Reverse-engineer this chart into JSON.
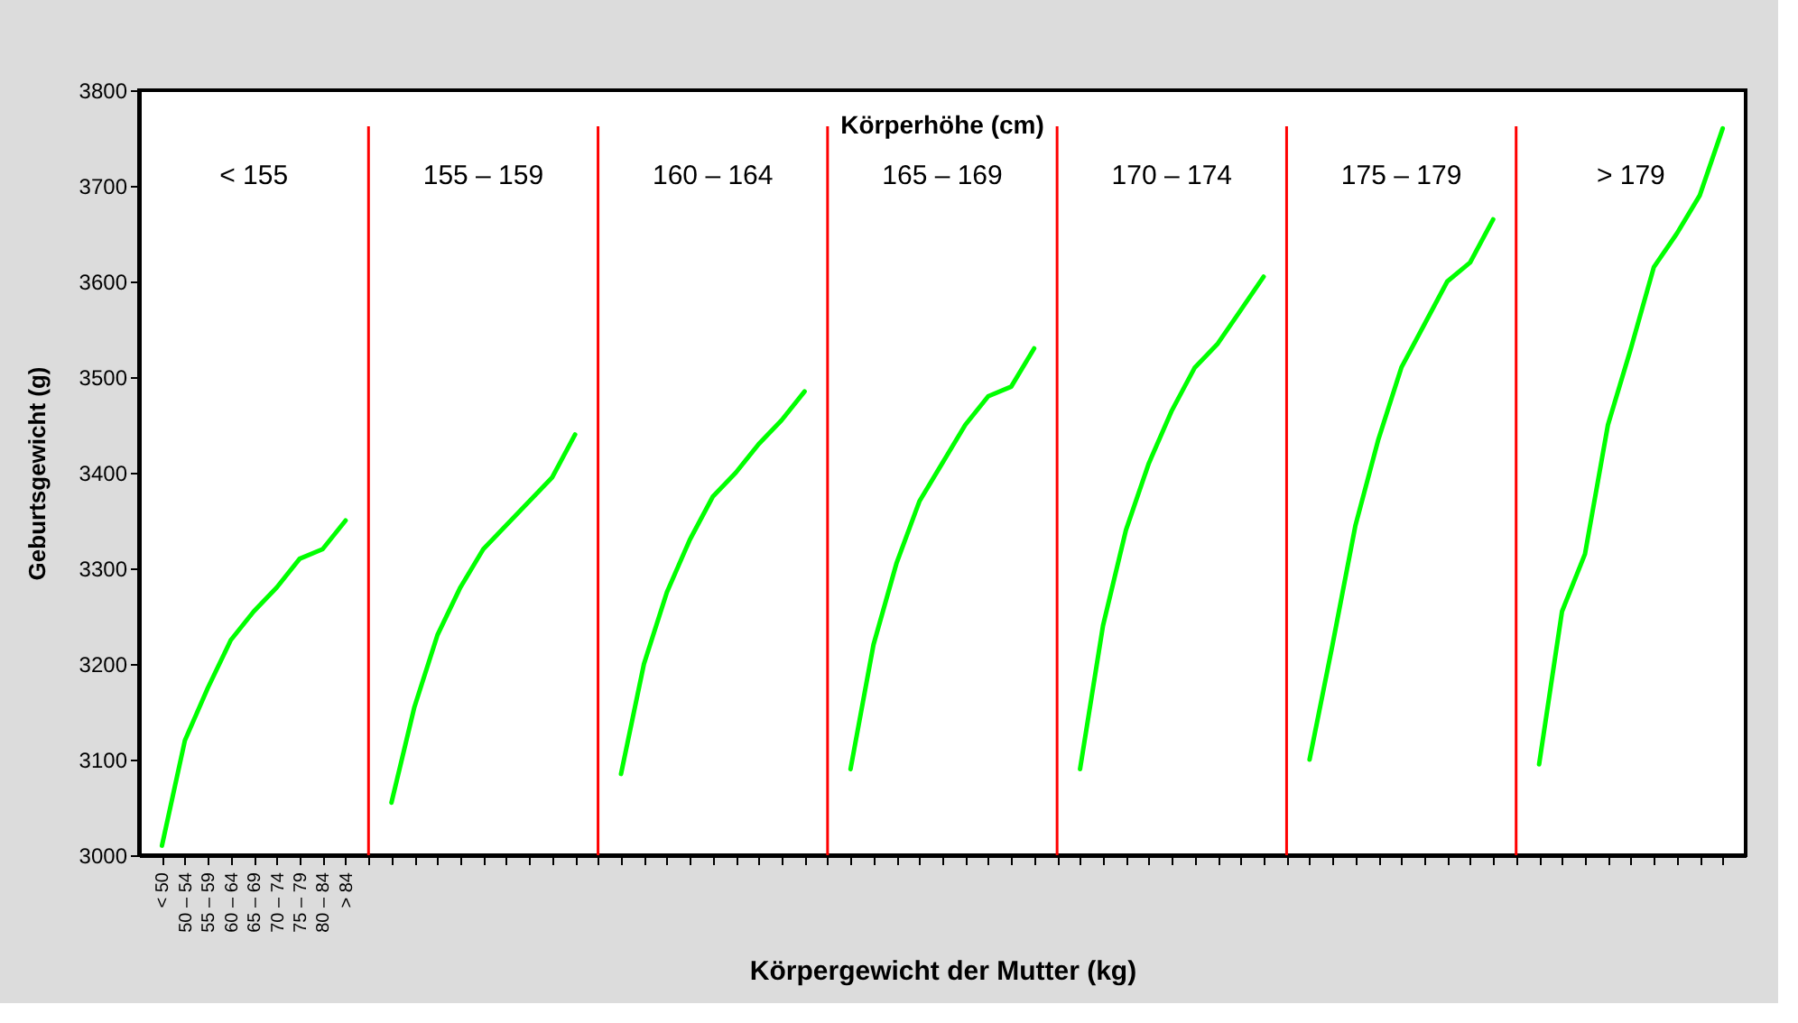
{
  "chart_data": {
    "type": "line",
    "xlabel": "Körpergewicht der Mutter (kg)",
    "ylabel": "Geburtsgewicht (g)",
    "legend_title": "Körperhöhe (cm)",
    "categories": [
      "< 50",
      "50 – 54",
      "55 – 59",
      "60 – 64",
      "65 – 69",
      "70 – 74",
      "75 – 79",
      "80 – 84",
      "> 84",
      null,
      null,
      null,
      null,
      null,
      null,
      null,
      null,
      null,
      null,
      null,
      null,
      null,
      null,
      null,
      null,
      null,
      null,
      null,
      null,
      null,
      null,
      null,
      null,
      null,
      null,
      null,
      null,
      null,
      null,
      null,
      null,
      null,
      null,
      null,
      null,
      null,
      null,
      null,
      null,
      null,
      null,
      null,
      null,
      null,
      null,
      null,
      null,
      null,
      null,
      null,
      null,
      null,
      null,
      null,
      null,
      null,
      null,
      null,
      null
    ],
    "ylim": [
      3000,
      3800
    ],
    "yticks": [
      3000,
      3100,
      3200,
      3300,
      3400,
      3500,
      3600,
      3700,
      3800
    ],
    "marker": "none",
    "line_style": "solid",
    "grid": "x",
    "annotations": [
      "< 155",
      "155 – 159",
      "160 – 164",
      "165 – 169",
      "170 – 174",
      "175 – 179",
      "> 179"
    ],
    "series": [
      {
        "color": "#00ff00",
        "values": [
          3010,
          3120,
          3175,
          3225,
          3255,
          3280,
          3310,
          3320,
          3350,
          null,
          null,
          null,
          null,
          null,
          null,
          null,
          null,
          null,
          null,
          null,
          null,
          null,
          null,
          null,
          null,
          null,
          null,
          null,
          null,
          null,
          null,
          null,
          null,
          null,
          null,
          null,
          null,
          null,
          null,
          null,
          null,
          null,
          null,
          null,
          null,
          null,
          null,
          null,
          null,
          null,
          null,
          null,
          null,
          null,
          null,
          null,
          null,
          null,
          null,
          null,
          null,
          null,
          null,
          null,
          null,
          null,
          null,
          null,
          null
        ]
      },
      {
        "color": "#00ff00",
        "values": [
          null,
          null,
          null,
          null,
          null,
          null,
          null,
          null,
          null,
          null,
          3055,
          3155,
          3230,
          3280,
          3320,
          3345,
          3370,
          3395,
          3440,
          null,
          null,
          null,
          null,
          null,
          null,
          null,
          null,
          null,
          null,
          null,
          null,
          null,
          null,
          null,
          null,
          null,
          null,
          null,
          null,
          null,
          null,
          null,
          null,
          null,
          null,
          null,
          null,
          null,
          null,
          null,
          null,
          null,
          null,
          null,
          null,
          null,
          null,
          null,
          null,
          null,
          null,
          null,
          null,
          null,
          null,
          null,
          null,
          null,
          null
        ]
      },
      {
        "color": "#00ff00",
        "values": [
          null,
          null,
          null,
          null,
          null,
          null,
          null,
          null,
          null,
          null,
          null,
          null,
          null,
          null,
          null,
          null,
          null,
          null,
          null,
          null,
          3085,
          3200,
          3275,
          3330,
          3375,
          3400,
          3430,
          3455,
          3485,
          null,
          null,
          null,
          null,
          null,
          null,
          null,
          null,
          null,
          null,
          null,
          null,
          null,
          null,
          null,
          null,
          null,
          null,
          null,
          null,
          null,
          null,
          null,
          null,
          null,
          null,
          null,
          null,
          null,
          null,
          null,
          null,
          null,
          null,
          null,
          null,
          null,
          null,
          null,
          null
        ]
      },
      {
        "color": "#00ff00",
        "values": [
          null,
          null,
          null,
          null,
          null,
          null,
          null,
          null,
          null,
          null,
          null,
          null,
          null,
          null,
          null,
          null,
          null,
          null,
          null,
          null,
          null,
          null,
          null,
          null,
          null,
          null,
          null,
          null,
          null,
          null,
          3090,
          3220,
          3305,
          3370,
          3410,
          3450,
          3480,
          3490,
          3530,
          null,
          null,
          null,
          null,
          null,
          null,
          null,
          null,
          null,
          null,
          null,
          null,
          null,
          null,
          null,
          null,
          null,
          null,
          null,
          null,
          null,
          null,
          null,
          null,
          null,
          null,
          null,
          null,
          null,
          null
        ]
      },
      {
        "color": "#00ff00",
        "values": [
          null,
          null,
          null,
          null,
          null,
          null,
          null,
          null,
          null,
          null,
          null,
          null,
          null,
          null,
          null,
          null,
          null,
          null,
          null,
          null,
          null,
          null,
          null,
          null,
          null,
          null,
          null,
          null,
          null,
          null,
          null,
          null,
          null,
          null,
          null,
          null,
          null,
          null,
          null,
          null,
          3090,
          3240,
          3340,
          3410,
          3465,
          3510,
          3535,
          3570,
          3605,
          null,
          null,
          null,
          null,
          null,
          null,
          null,
          null,
          null,
          null,
          null,
          null,
          null,
          null,
          null,
          null,
          null,
          null,
          null,
          null
        ]
      },
      {
        "color": "#00ff00",
        "values": [
          null,
          null,
          null,
          null,
          null,
          null,
          null,
          null,
          null,
          null,
          null,
          null,
          null,
          null,
          null,
          null,
          null,
          null,
          null,
          null,
          null,
          null,
          null,
          null,
          null,
          null,
          null,
          null,
          null,
          null,
          null,
          null,
          null,
          null,
          null,
          null,
          null,
          null,
          null,
          null,
          null,
          null,
          null,
          null,
          null,
          null,
          null,
          null,
          null,
          null,
          3100,
          3220,
          3345,
          3435,
          3510,
          3555,
          3600,
          3620,
          3665,
          null,
          null,
          null,
          null,
          null,
          null,
          null,
          null,
          null,
          null
        ]
      },
      {
        "color": "#00ff00",
        "values": [
          null,
          null,
          null,
          null,
          null,
          null,
          null,
          null,
          null,
          null,
          null,
          null,
          null,
          null,
          null,
          null,
          null,
          null,
          null,
          null,
          null,
          null,
          null,
          null,
          null,
          null,
          null,
          null,
          null,
          null,
          null,
          null,
          null,
          null,
          null,
          null,
          null,
          null,
          null,
          null,
          null,
          null,
          null,
          null,
          null,
          null,
          null,
          null,
          null,
          null,
          null,
          null,
          null,
          null,
          null,
          null,
          null,
          null,
          null,
          null,
          3095,
          3255,
          3315,
          3450,
          3530,
          3615,
          3650,
          3690,
          3760
        ]
      }
    ]
  }
}
